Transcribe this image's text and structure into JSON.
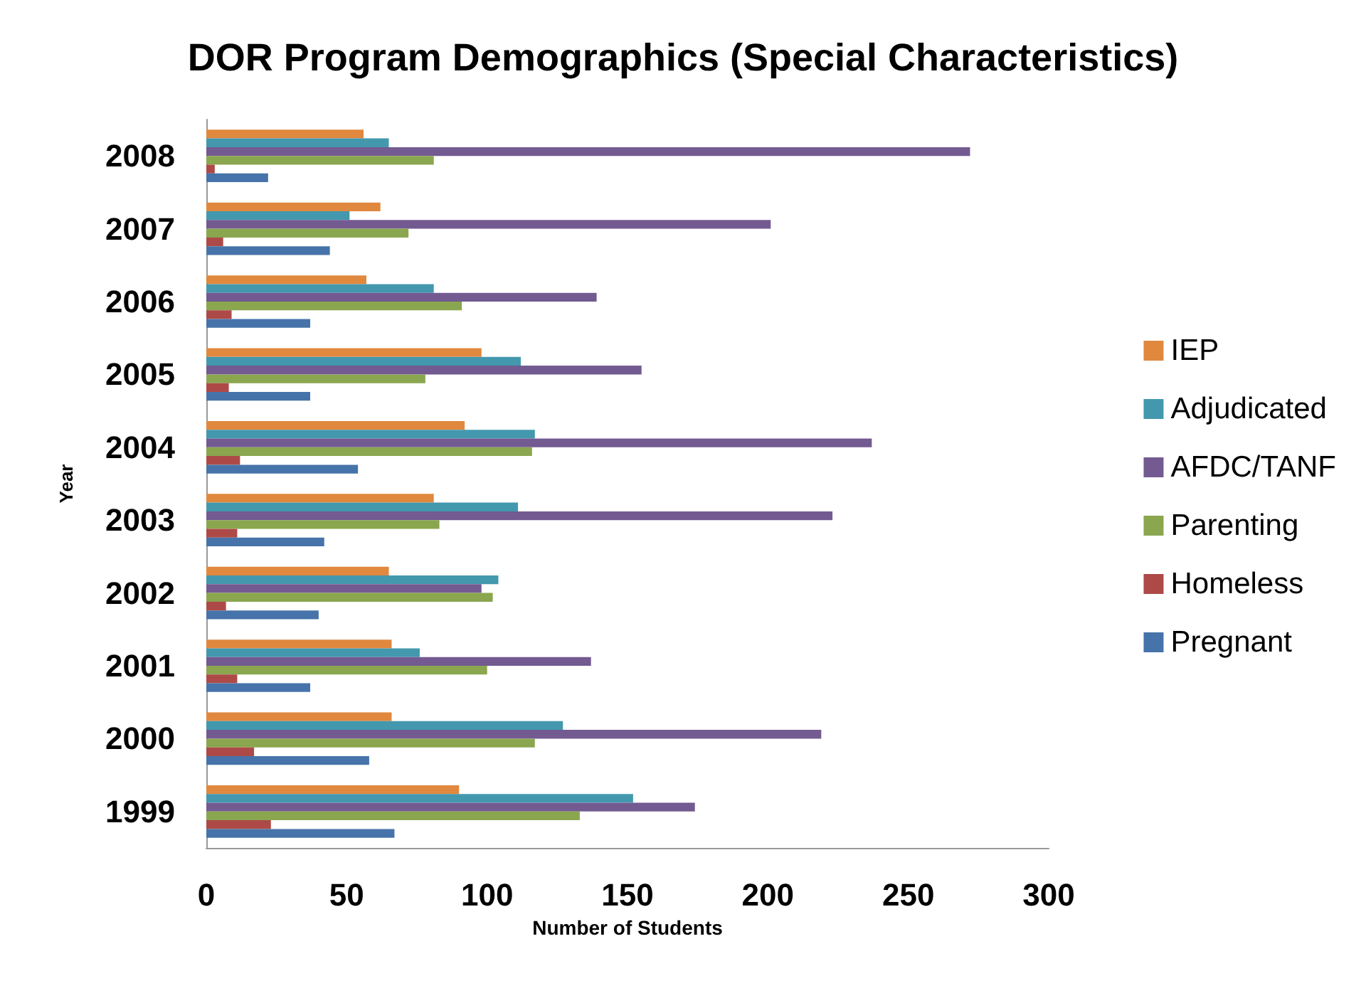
{
  "chart_data": {
    "type": "bar",
    "orientation": "horizontal",
    "title": "DOR Program Demographics (Special Characteristics)",
    "xlabel": "Number of Students",
    "ylabel": "Year",
    "categories": [
      "2008",
      "2007",
      "2006",
      "2005",
      "2004",
      "2003",
      "2002",
      "2001",
      "2000",
      "1999"
    ],
    "series": [
      {
        "name": "IEP",
        "color": "#e0883e",
        "values": [
          56,
          62,
          57,
          98,
          92,
          81,
          65,
          66,
          66,
          90
        ]
      },
      {
        "name": "Adjudicated",
        "color": "#4398ae",
        "values": [
          65,
          51,
          81,
          112,
          117,
          111,
          104,
          76,
          127,
          152
        ]
      },
      {
        "name": "AFDC/TANF",
        "color": "#735a91",
        "values": [
          272,
          201,
          139,
          155,
          237,
          223,
          98,
          137,
          219,
          174
        ]
      },
      {
        "name": "Parenting",
        "color": "#8aa64f",
        "values": [
          81,
          72,
          91,
          78,
          116,
          83,
          102,
          100,
          117,
          133
        ]
      },
      {
        "name": "Homeless",
        "color": "#ad4a47",
        "values": [
          3,
          6,
          9,
          8,
          12,
          11,
          7,
          11,
          17,
          23
        ]
      },
      {
        "name": "Pregnant",
        "color": "#4673a9",
        "values": [
          22,
          44,
          37,
          37,
          54,
          42,
          40,
          37,
          58,
          67
        ]
      }
    ],
    "xlim": [
      0,
      300
    ],
    "xticks": [
      0,
      50,
      100,
      150,
      200,
      250,
      300
    ],
    "grid": false,
    "legend": "right"
  }
}
